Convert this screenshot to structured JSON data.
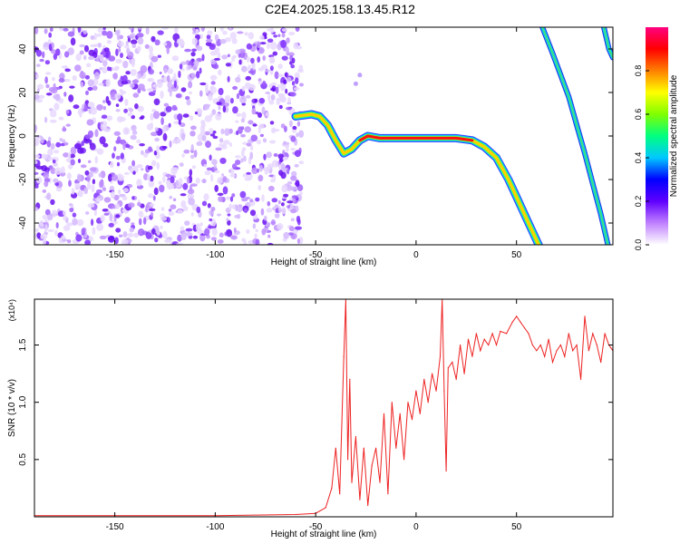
{
  "title": "C2E4.2025.158.13.45.R12",
  "chart_data": [
    {
      "type": "heatmap",
      "xlabel": "Height of straight line (km)",
      "ylabel": "Frequency (Hz)",
      "xlim": [
        -190,
        98
      ],
      "ylim": [
        -50,
        50
      ],
      "x_ticks": [
        -150,
        -100,
        -50,
        0,
        50
      ],
      "y_ticks": [
        -40,
        -20,
        0,
        20,
        40
      ],
      "colorbar": {
        "label": "Normalized spectral amplitude",
        "range": [
          0,
          1
        ],
        "ticks": [
          "0.0",
          "0.2",
          "0.4",
          "0.6",
          "0.8"
        ],
        "colors": [
          "#ffffff",
          "#c080ff",
          "#6000ff",
          "#0000ff",
          "#00c8ff",
          "#00ff80",
          "#80ff00",
          "#ffff00",
          "#ff8000",
          "#ff0000",
          "#ff0080"
        ]
      },
      "noise_region_x": [
        -190,
        -57
      ],
      "main_trace": {
        "x": [
          -60,
          -52,
          -48,
          -44,
          -40,
          -36,
          -32,
          -28,
          -24,
          -18,
          -10,
          0,
          10,
          20,
          28,
          34,
          40,
          46,
          50,
          54,
          58,
          62
        ],
        "y": [
          9,
          10,
          9,
          5,
          -2,
          -8,
          -6,
          -2,
          0,
          -1,
          -1,
          -1,
          -1,
          -1,
          -2,
          -5,
          -10,
          -20,
          -28,
          -36,
          -44,
          -52
        ]
      },
      "secondary_traces": [
        {
          "x": [
            62,
            68,
            72,
            76,
            80,
            84,
            88,
            92,
            96
          ],
          "y": [
            52,
            38,
            28,
            18,
            5,
            -8,
            -22,
            -36,
            -52
          ]
        },
        {
          "x": [
            93,
            94,
            95,
            96,
            98
          ],
          "y": [
            52,
            48,
            44,
            40,
            36
          ]
        }
      ],
      "blips": [
        {
          "x": -28,
          "y": 28
        },
        {
          "x": -30,
          "y": 24
        }
      ]
    },
    {
      "type": "line",
      "xlabel": "Height of straight line (km)",
      "ylabel": "SNR (10 * v/v)",
      "y_multiplier": "(x10⁴)",
      "xlim": [
        -190,
        98
      ],
      "ylim": [
        0,
        1.9
      ],
      "x_ticks": [
        -150,
        -100,
        -50,
        0,
        50
      ],
      "y_ticks": [
        0.5,
        1.0,
        1.5
      ],
      "y_tick_labels": [
        "0.5",
        "1.0",
        "1.5"
      ],
      "color": "#ee2222",
      "x": [
        -190,
        -150,
        -100,
        -60,
        -50,
        -45,
        -42,
        -40,
        -38,
        -36,
        -35,
        -34,
        -33,
        -32,
        -30,
        -28,
        -26,
        -24,
        -22,
        -20,
        -18,
        -16,
        -14,
        -12,
        -10,
        -8,
        -6,
        -4,
        -2,
        0,
        2,
        4,
        6,
        8,
        10,
        12,
        13,
        14,
        15,
        16,
        18,
        20,
        22,
        24,
        26,
        28,
        30,
        32,
        34,
        36,
        38,
        40,
        42,
        45,
        48,
        50,
        52,
        54,
        56,
        58,
        60,
        62,
        64,
        66,
        68,
        70,
        72,
        74,
        76,
        78,
        80,
        82,
        84,
        86,
        88,
        90,
        92,
        94,
        96,
        98
      ],
      "values": [
        0.01,
        0.01,
        0.01,
        0.02,
        0.03,
        0.08,
        0.25,
        0.6,
        0.2,
        1.4,
        1.9,
        0.5,
        1.2,
        0.3,
        0.7,
        0.15,
        0.6,
        0.1,
        0.45,
        0.6,
        0.3,
        0.9,
        0.2,
        1.0,
        0.6,
        0.9,
        0.5,
        1.0,
        0.85,
        1.1,
        0.9,
        1.2,
        1.0,
        1.25,
        1.1,
        1.4,
        1.9,
        1.1,
        0.4,
        1.3,
        1.35,
        1.2,
        1.5,
        1.25,
        1.55,
        1.4,
        1.6,
        1.45,
        1.55,
        1.5,
        1.6,
        1.5,
        1.62,
        1.6,
        1.7,
        1.75,
        1.7,
        1.65,
        1.6,
        1.5,
        1.45,
        1.5,
        1.4,
        1.55,
        1.35,
        1.45,
        1.5,
        1.4,
        1.6,
        1.45,
        1.5,
        1.2,
        1.75,
        1.45,
        1.6,
        1.5,
        1.35,
        1.6,
        1.5,
        1.45
      ]
    }
  ]
}
